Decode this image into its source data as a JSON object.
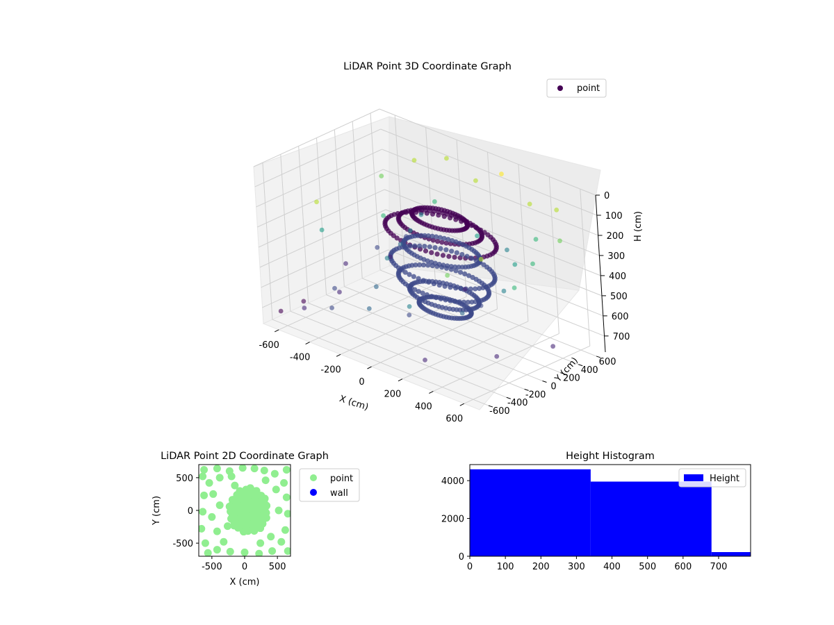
{
  "chart_data": [
    {
      "type": "scatter",
      "dimension": "3d",
      "title": "LiDAR Point 3D Coordinate Graph",
      "xlabel": "X (cm)",
      "ylabel": "Y (cm)",
      "zlabel": "H (cm)",
      "xlim": [
        -700,
        700
      ],
      "ylim": [
        -700,
        700
      ],
      "zlim": [
        0,
        780
      ],
      "z_inverted": true,
      "xticks": [
        -600,
        -400,
        -200,
        0,
        200,
        400,
        600
      ],
      "yticks": [
        -600,
        -400,
        -200,
        0,
        200,
        400,
        600
      ],
      "zticks": [
        0,
        100,
        200,
        300,
        400,
        500,
        600,
        700
      ],
      "grid": true,
      "legend": {
        "placement": "top-right",
        "entries": [
          "point"
        ]
      },
      "colormap": "viridis",
      "series": [
        {
          "name": "point",
          "description": "dense ring cluster centred near origin (radius ~150-350 cm, heights ~150-650 cm) plus scattered outliers",
          "color": "#440154",
          "points": [
            [
              -640,
              620,
              700
            ],
            [
              -520,
              610,
              560
            ],
            [
              -430,
              640,
              430
            ],
            [
              -600,
              420,
              600
            ],
            [
              -420,
              380,
              520
            ],
            [
              -650,
              150,
              640
            ],
            [
              -550,
              -100,
              700
            ],
            [
              -470,
              -280,
              620
            ],
            [
              -620,
              -380,
              710
            ],
            [
              -380,
              520,
              120
            ],
            [
              -220,
              610,
              80
            ],
            [
              -60,
              650,
              150
            ],
            [
              120,
              640,
              60
            ],
            [
              320,
              600,
              140
            ],
            [
              520,
              560,
              100
            ],
            [
              640,
              380,
              180
            ],
            [
              610,
              120,
              250
            ],
            [
              650,
              -160,
              300
            ],
            [
              600,
              -420,
              120
            ],
            [
              480,
              -600,
              200
            ],
            [
              240,
              -640,
              420
            ],
            [
              -40,
              -620,
              520
            ],
            [
              -300,
              -600,
              600
            ],
            [
              -520,
              -540,
              680
            ],
            [
              -640,
              -600,
              720
            ],
            [
              -300,
              300,
              400
            ],
            [
              -250,
              -50,
              450
            ],
            [
              -150,
              -350,
              500
            ],
            [
              100,
              -420,
              550
            ],
            [
              380,
              -300,
              480
            ],
            [
              450,
              50,
              420
            ],
            [
              350,
              350,
              380
            ],
            [
              50,
              450,
              350
            ],
            [
              -350,
              100,
              300
            ],
            [
              200,
              200,
              600
            ],
            [
              -500,
              350,
              200
            ],
            [
              -200,
              420,
              250
            ],
            [
              420,
              480,
              260
            ],
            [
              560,
              -250,
              650
            ],
            [
              -580,
              -200,
              380
            ],
            [
              -120,
              560,
              690
            ],
            [
              260,
              -540,
              700
            ],
            [
              600,
              300,
              700
            ],
            [
              -450,
              -450,
              150
            ],
            [
              150,
              600,
              420
            ]
          ]
        }
      ]
    },
    {
      "type": "scatter",
      "title": "LiDAR Point 2D Coordinate Graph",
      "xlabel": "X (cm)",
      "ylabel": "Y (cm)",
      "xlim": [
        -700,
        700
      ],
      "ylim": [
        -700,
        700
      ],
      "xticks": [
        -500,
        0,
        500
      ],
      "yticks": [
        -500,
        0,
        500
      ],
      "legend": {
        "placement": "outside-right",
        "entries": [
          "point",
          "wall"
        ]
      },
      "series": [
        {
          "name": "point",
          "color": "#90ee90",
          "points": [
            [
              -620,
              620
            ],
            [
              -420,
              640
            ],
            [
              -230,
              600
            ],
            [
              -30,
              650
            ],
            [
              150,
              640
            ],
            [
              300,
              610
            ],
            [
              460,
              560
            ],
            [
              600,
              420
            ],
            [
              640,
              200
            ],
            [
              660,
              -50
            ],
            [
              620,
              -300
            ],
            [
              560,
              -480
            ],
            [
              420,
              -620
            ],
            [
              220,
              -660
            ],
            [
              0,
              -640
            ],
            [
              -220,
              -630
            ],
            [
              -420,
              -600
            ],
            [
              -600,
              -500
            ],
            [
              -660,
              -280
            ],
            [
              -640,
              -20
            ],
            [
              -620,
              230
            ],
            [
              -540,
              420
            ],
            [
              -380,
              500
            ],
            [
              -200,
              520
            ],
            [
              -480,
              250
            ],
            [
              -380,
              80
            ],
            [
              -500,
              -100
            ],
            [
              -420,
              -320
            ],
            [
              -320,
              -480
            ],
            [
              -560,
              -650
            ],
            [
              -640,
              520
            ],
            [
              640,
              620
            ],
            [
              660,
              -620
            ],
            [
              520,
              0
            ],
            [
              480,
              320
            ],
            [
              400,
              -400
            ],
            [
              -150,
              380
            ],
            [
              -260,
              -240
            ],
            [
              240,
              -500
            ],
            [
              320,
              460
            ]
          ]
        },
        {
          "name": "wall",
          "color": "#0000ff",
          "points": []
        }
      ]
    },
    {
      "type": "bar",
      "title": "Height Histogram",
      "xlabel": "",
      "ylabel": "",
      "bins": [
        [
          0,
          340
        ],
        [
          340,
          680
        ],
        [
          680,
          790
        ]
      ],
      "values": [
        4600,
        3950,
        220
      ],
      "xlim": [
        0,
        790
      ],
      "ylim": [
        0,
        4850
      ],
      "xticks": [
        0,
        100,
        200,
        300,
        400,
        500,
        600,
        700
      ],
      "yticks": [
        0,
        2000,
        4000
      ],
      "legend": {
        "placement": "top-right",
        "entries": [
          "Height"
        ]
      },
      "series": [
        {
          "name": "Height",
          "color": "#0000ff"
        }
      ]
    }
  ]
}
